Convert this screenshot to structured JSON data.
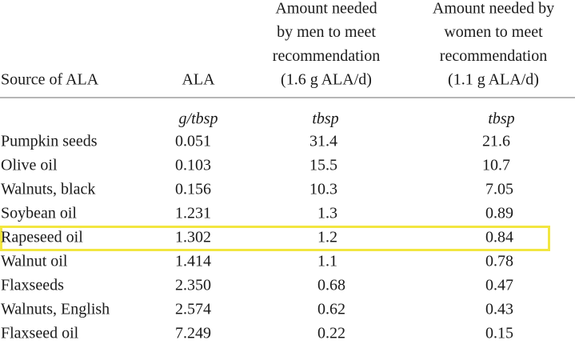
{
  "table": {
    "headers": [
      [
        "Source of ALA"
      ],
      [
        "ALA"
      ],
      [
        "Amount needed",
        "by men to meet",
        "recommendation",
        "(1.6 g ALA/d)"
      ],
      [
        "Amount needed by",
        "women to meet",
        "recommendation",
        "(1.1 g ALA/d)"
      ]
    ],
    "units": [
      "g/tbsp",
      "tbsp",
      "tbsp"
    ],
    "rows": [
      [
        "Pumpkin seeds",
        "0.051",
        "31.4",
        "21.6"
      ],
      [
        "Olive oil",
        "0.103",
        "15.5",
        "10.7"
      ],
      [
        "Walnuts, black",
        "0.156",
        "10.3",
        "7.05"
      ],
      [
        "Soybean oil",
        "1.231",
        "1.3",
        "0.89"
      ],
      [
        "Rapeseed oil",
        "1.302",
        "1.2",
        "0.84"
      ],
      [
        "Walnut oil",
        "1.414",
        "1.1",
        "0.78"
      ],
      [
        "Flaxseeds",
        "2.350",
        "0.68",
        "0.47"
      ],
      [
        "Walnuts, English",
        "2.574",
        "0.62",
        "0.43"
      ],
      [
        "Flaxseed oil",
        "7.249",
        "0.22",
        "0.15"
      ]
    ]
  }
}
